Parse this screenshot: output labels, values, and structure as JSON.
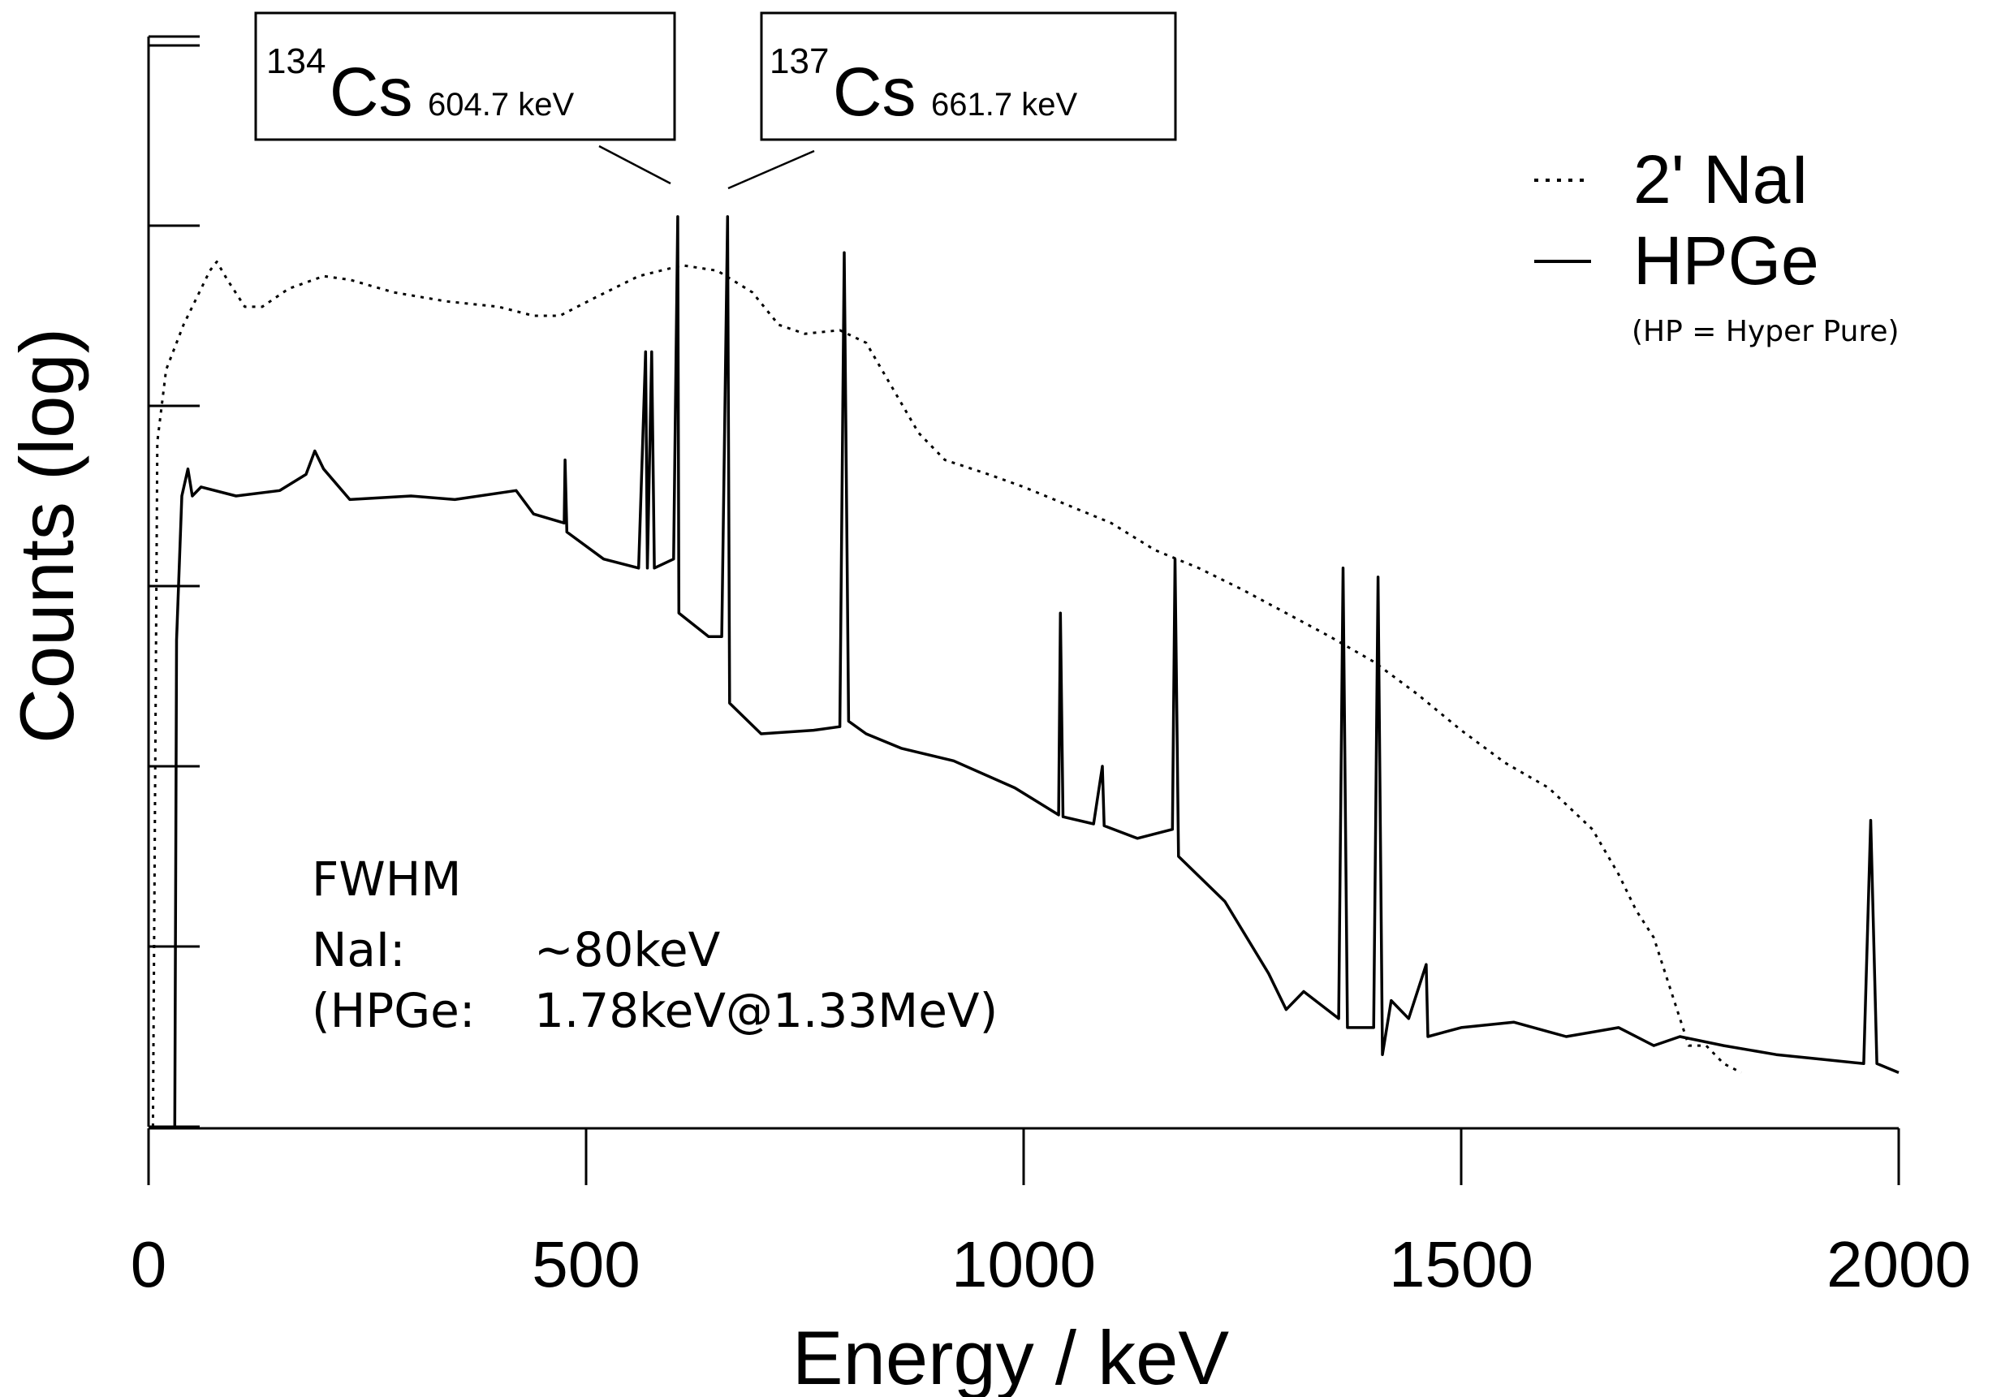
{
  "chart_data": {
    "type": "line",
    "xlabel": "Energy / keV",
    "ylabel": "Counts (log)",
    "xlim": [
      0,
      2000
    ],
    "x_ticks": [
      "0",
      "500",
      "1000",
      "1500",
      "2000"
    ],
    "x_tick_values": [
      0,
      500,
      1000,
      1500,
      2000
    ],
    "y_scale": "log",
    "y_ticks_labeled": false,
    "grid": false,
    "legend_position": "top-right",
    "legend": [
      {
        "name": "2' NaI",
        "style": "dotted"
      },
      {
        "name": "HPGe",
        "style": "solid"
      }
    ],
    "legend_note": "(HP = Hyper Pure)",
    "peak_labels": [
      {
        "mass": "134",
        "element": "Cs",
        "energy_label": "604.7 keV",
        "energy": 604.7
      },
      {
        "mass": "137",
        "element": "Cs",
        "energy_label": "661.7 keV",
        "energy": 661.7
      }
    ],
    "annotation_lines": [
      "FWHM",
      "NaI:",
      "~80keV",
      "(HPGe:",
      "1.78keV@1.33MeV)"
    ],
    "series": [
      {
        "name": "2' NaI",
        "style": "dotted",
        "points": [
          [
            5,
            0.0
          ],
          [
            10,
            3.8
          ],
          [
            20,
            4.2
          ],
          [
            40,
            4.45
          ],
          [
            55,
            4.6
          ],
          [
            70,
            4.75
          ],
          [
            78,
            4.8
          ],
          [
            90,
            4.7
          ],
          [
            110,
            4.55
          ],
          [
            130,
            4.55
          ],
          [
            160,
            4.65
          ],
          [
            200,
            4.72
          ],
          [
            230,
            4.7
          ],
          [
            280,
            4.63
          ],
          [
            340,
            4.58
          ],
          [
            400,
            4.55
          ],
          [
            440,
            4.5
          ],
          [
            470,
            4.5
          ],
          [
            510,
            4.6
          ],
          [
            560,
            4.72
          ],
          [
            610,
            4.78
          ],
          [
            650,
            4.75
          ],
          [
            690,
            4.63
          ],
          [
            720,
            4.45
          ],
          [
            750,
            4.4
          ],
          [
            790,
            4.42
          ],
          [
            820,
            4.35
          ],
          [
            850,
            4.1
          ],
          [
            880,
            3.85
          ],
          [
            910,
            3.7
          ],
          [
            960,
            3.62
          ],
          [
            1000,
            3.55
          ],
          [
            1050,
            3.45
          ],
          [
            1100,
            3.35
          ],
          [
            1150,
            3.2
          ],
          [
            1200,
            3.1
          ],
          [
            1250,
            2.98
          ],
          [
            1300,
            2.85
          ],
          [
            1350,
            2.72
          ],
          [
            1400,
            2.58
          ],
          [
            1450,
            2.4
          ],
          [
            1500,
            2.2
          ],
          [
            1550,
            2.02
          ],
          [
            1600,
            1.88
          ],
          [
            1650,
            1.65
          ],
          [
            1680,
            1.4
          ],
          [
            1700,
            1.2
          ],
          [
            1720,
            1.05
          ],
          [
            1740,
            0.75
          ],
          [
            1760,
            0.45
          ],
          [
            1780,
            0.45
          ],
          [
            1800,
            0.35
          ],
          [
            1820,
            0.3
          ]
        ]
      },
      {
        "name": "HPGe",
        "style": "solid",
        "points": [
          [
            30,
            0.0
          ],
          [
            32,
            2.7
          ],
          [
            38,
            3.5
          ],
          [
            45,
            3.65
          ],
          [
            50,
            3.5
          ],
          [
            60,
            3.55
          ],
          [
            100,
            3.5
          ],
          [
            150,
            3.53
          ],
          [
            180,
            3.62
          ],
          [
            190,
            3.75
          ],
          [
            200,
            3.65
          ],
          [
            230,
            3.48
          ],
          [
            300,
            3.5
          ],
          [
            350,
            3.48
          ],
          [
            420,
            3.53
          ],
          [
            440,
            3.4
          ],
          [
            475,
            3.35
          ],
          [
            476,
            3.7
          ],
          [
            478,
            3.3
          ],
          [
            520,
            3.15
          ],
          [
            560,
            3.1
          ],
          [
            568,
            4.3
          ],
          [
            570,
            3.1
          ],
          [
            575,
            4.3
          ],
          [
            578,
            3.1
          ],
          [
            600,
            3.15
          ],
          [
            604.7,
            5.05
          ],
          [
            606,
            2.85
          ],
          [
            640,
            2.72
          ],
          [
            655,
            2.72
          ],
          [
            661.7,
            5.05
          ],
          [
            664,
            2.35
          ],
          [
            700,
            2.18
          ],
          [
            760,
            2.2
          ],
          [
            790,
            2.22
          ],
          [
            795,
            4.85
          ],
          [
            800,
            2.25
          ],
          [
            820,
            2.18
          ],
          [
            860,
            2.1
          ],
          [
            920,
            2.03
          ],
          [
            990,
            1.88
          ],
          [
            1040,
            1.73
          ],
          [
            1042,
            2.85
          ],
          [
            1045,
            1.72
          ],
          [
            1080,
            1.68
          ],
          [
            1090,
            2.0
          ],
          [
            1092,
            1.67
          ],
          [
            1130,
            1.6
          ],
          [
            1170,
            1.65
          ],
          [
            1173,
            3.15
          ],
          [
            1177,
            1.5
          ],
          [
            1230,
            1.25
          ],
          [
            1280,
            0.85
          ],
          [
            1300,
            0.65
          ],
          [
            1320,
            0.75
          ],
          [
            1360,
            0.6
          ],
          [
            1365,
            3.1
          ],
          [
            1370,
            0.55
          ],
          [
            1400,
            0.55
          ],
          [
            1405,
            3.05
          ],
          [
            1410,
            0.4
          ],
          [
            1420,
            0.7
          ],
          [
            1440,
            0.6
          ],
          [
            1460,
            0.9
          ],
          [
            1462,
            0.5
          ],
          [
            1500,
            0.55
          ],
          [
            1560,
            0.58
          ],
          [
            1620,
            0.5
          ],
          [
            1680,
            0.55
          ],
          [
            1720,
            0.45
          ],
          [
            1750,
            0.5
          ],
          [
            1800,
            0.45
          ],
          [
            1860,
            0.4
          ],
          [
            1900,
            0.38
          ],
          [
            1960,
            0.35
          ],
          [
            1968,
            1.7
          ],
          [
            1975,
            0.35
          ],
          [
            2000,
            0.3
          ]
        ]
      }
    ]
  }
}
